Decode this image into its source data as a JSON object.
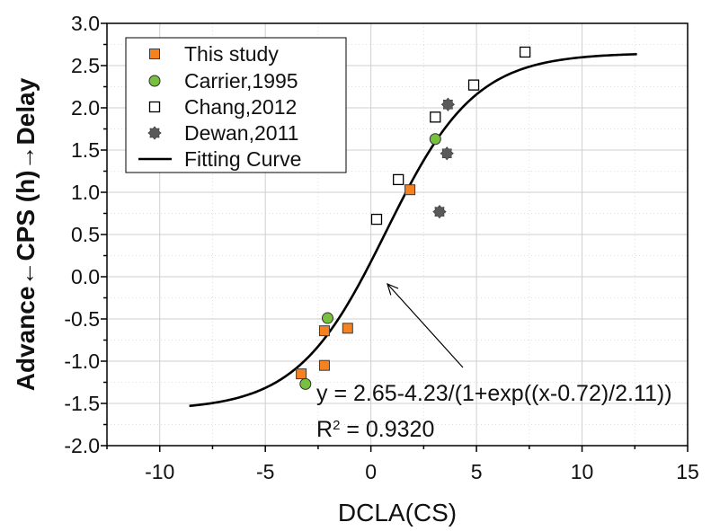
{
  "chart_data": {
    "type": "scatter",
    "xlabel": "DCLA(CS)",
    "ylabel": "Advance←CPS (h)→Delay",
    "xlim": [
      -12.5,
      15
    ],
    "ylim": [
      -2.0,
      3.0
    ],
    "x_tick_labels": [
      "-10",
      "-5",
      "0",
      "5",
      "10",
      "15"
    ],
    "y_tick_labels": [
      "-2.0",
      "-1.5",
      "-1.0",
      "-0.5",
      "0.0",
      "0.5",
      "1.0",
      "1.5",
      "2.0",
      "2.5",
      "3.0"
    ],
    "grid": true,
    "legend_position": "top-left",
    "series": [
      {
        "name": "This study",
        "marker": "square",
        "color": "#F5821F",
        "points": [
          {
            "x": -3.3,
            "y": -1.15
          },
          {
            "x": -2.2,
            "y": -0.64
          },
          {
            "x": -2.2,
            "y": -1.05
          },
          {
            "x": -1.1,
            "y": -0.61
          },
          {
            "x": 1.85,
            "y": 1.03
          }
        ]
      },
      {
        "name": "Carrier,1995",
        "marker": "circle",
        "color": "#78C13F",
        "points": [
          {
            "x": -2.05,
            "y": -0.49
          },
          {
            "x": -3.1,
            "y": -1.27
          },
          {
            "x": 3.05,
            "y": 1.63
          }
        ]
      },
      {
        "name": "Chang,2012",
        "marker": "open-square",
        "color": "#000000",
        "points": [
          {
            "x": 0.27,
            "y": 0.68
          },
          {
            "x": 1.3,
            "y": 1.15
          },
          {
            "x": 3.05,
            "y": 1.89
          },
          {
            "x": 4.87,
            "y": 2.27
          },
          {
            "x": 7.3,
            "y": 2.66
          }
        ]
      },
      {
        "name": "Dewan,2011",
        "marker": "star",
        "color": "#595959",
        "points": [
          {
            "x": 3.65,
            "y": 2.04
          },
          {
            "x": 3.6,
            "y": 1.46
          },
          {
            "x": 3.25,
            "y": 0.77
          }
        ]
      }
    ],
    "fit": {
      "name": "Fitting Curve",
      "color": "#000000",
      "params": {
        "a": 2.65,
        "b": 4.23,
        "x0": 0.72,
        "dx": 2.11
      },
      "x_range": [
        -8.6,
        12.6
      ],
      "equation_text": "y = 2.65-4.23/(1+exp((x-0.72)/2.11))",
      "r_squared": {
        "symbol": "R",
        "superscript": "2",
        "value": " = 0.9320"
      }
    }
  }
}
